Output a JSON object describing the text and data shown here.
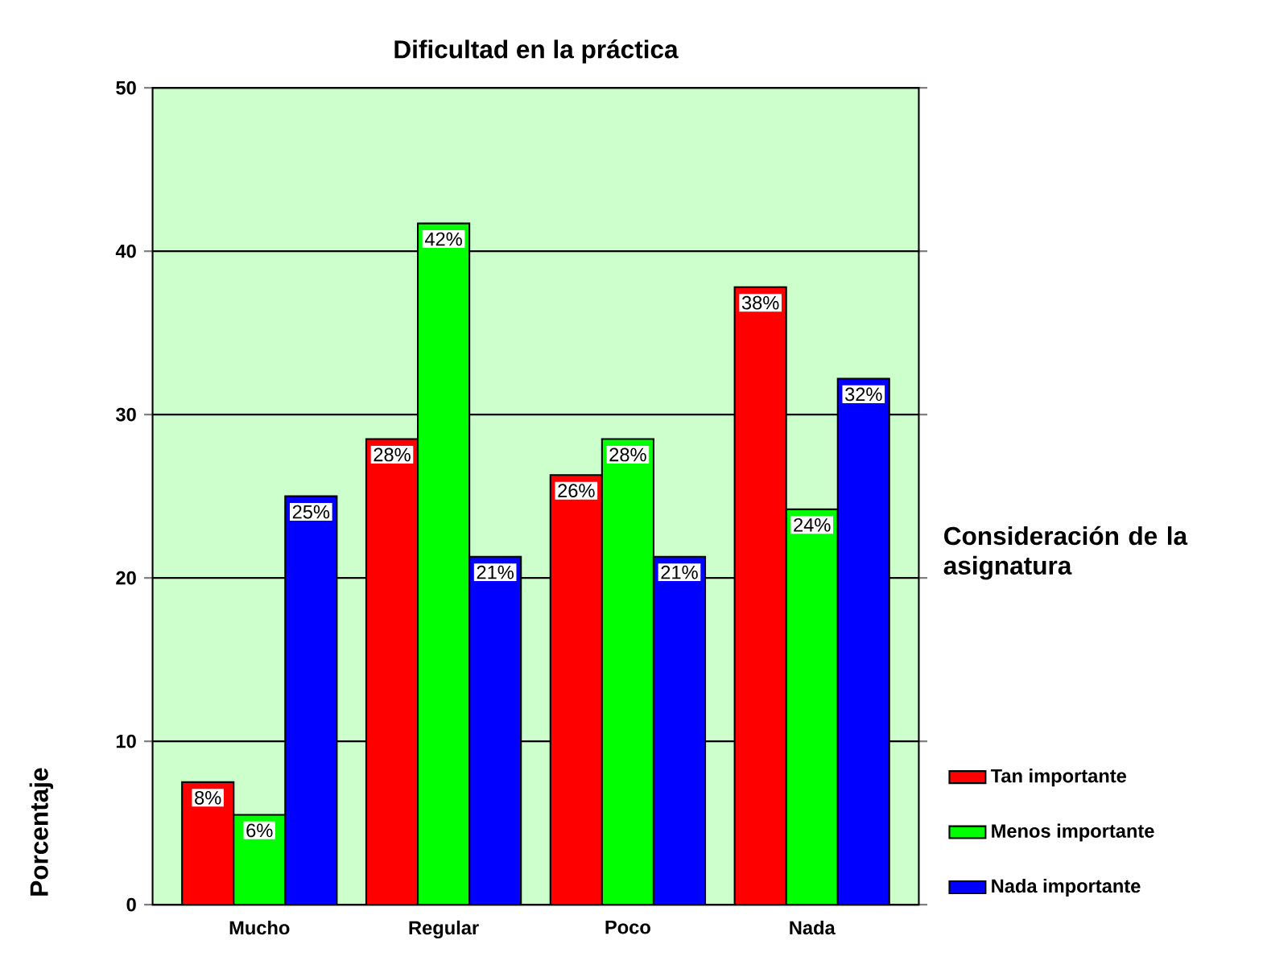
{
  "chart_data": {
    "type": "bar",
    "title": "Dificultad en la práctica",
    "ylabel": "Porcentaje",
    "legend_title": "Consideración de la asignatura",
    "categories": [
      "Mucho",
      "Regular",
      "Poco",
      "Nada"
    ],
    "series": [
      {
        "name": "Tan importante",
        "color": "#ff0000",
        "values": [
          7.5,
          28.5,
          26.3,
          37.8
        ],
        "value_labels": [
          "8%",
          "28%",
          "26%",
          "38%"
        ]
      },
      {
        "name": "Menos importante",
        "color": "#00ff00",
        "values": [
          5.5,
          41.7,
          28.5,
          24.2
        ],
        "value_labels": [
          "6%",
          "42%",
          "28%",
          "24%"
        ]
      },
      {
        "name": "Nada importante",
        "color": "#0000ff",
        "values": [
          25.0,
          21.3,
          21.3,
          32.2
        ],
        "value_labels": [
          "25%",
          "21%",
          "21%",
          "32%"
        ]
      }
    ],
    "ylim": [
      0,
      50
    ],
    "yticks": [
      0,
      10,
      20,
      30,
      40,
      50
    ],
    "grid": "y",
    "legend": "right"
  }
}
